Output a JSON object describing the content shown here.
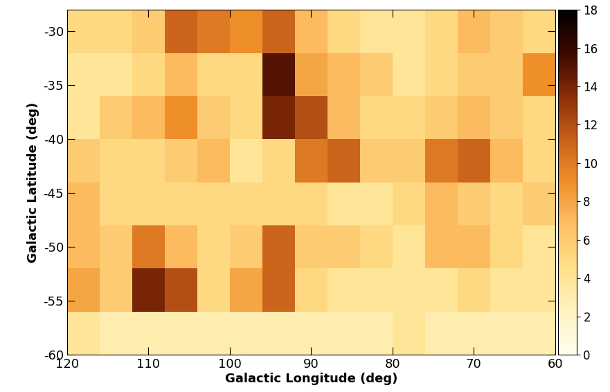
{
  "chart_data": {
    "type": "heatmap",
    "x_label": "Galactic Longitude (deg)",
    "y_label": "Galactic Latitude (deg)",
    "x_edges": [
      120,
      116,
      112,
      108,
      104,
      100,
      96,
      92,
      88,
      84,
      80,
      76,
      72,
      68,
      64,
      60
    ],
    "y_edges": [
      -60,
      -56,
      -52,
      -48,
      -44,
      -40,
      -36,
      -32,
      -28
    ],
    "cells": [
      [
        4,
        3,
        3,
        3,
        3,
        3,
        3,
        3,
        3,
        3,
        4,
        3,
        3,
        3,
        3
      ],
      [
        8,
        6,
        14,
        12,
        5,
        8,
        11,
        5,
        4,
        4,
        4,
        4,
        5,
        4,
        4
      ],
      [
        7,
        6,
        10,
        7,
        5,
        6,
        11,
        6,
        6,
        5,
        4,
        7,
        7,
        5,
        4
      ],
      [
        7,
        5,
        5,
        5,
        5,
        5,
        5,
        5,
        4,
        4,
        5,
        7,
        6,
        5,
        6
      ],
      [
        6,
        5,
        5,
        6,
        7,
        4,
        5,
        10,
        11,
        6,
        6,
        10,
        11,
        7,
        5
      ],
      [
        4,
        6,
        7,
        9,
        6,
        5,
        14,
        12,
        7,
        5,
        5,
        6,
        7,
        6,
        5
      ],
      [
        4,
        4,
        5,
        7,
        5,
        5,
        15,
        8,
        7,
        6,
        4,
        5,
        6,
        6,
        9
      ],
      [
        5,
        5,
        6,
        11,
        10,
        9,
        11,
        7,
        5,
        4,
        4,
        5,
        7,
        6,
        5
      ]
    ],
    "xlim": [
      120,
      60
    ],
    "ylim": [
      -60,
      -28
    ],
    "xticks": [
      120,
      110,
      100,
      90,
      80,
      70,
      60
    ],
    "yticks": [
      -60,
      -55,
      -50,
      -45,
      -40,
      -35,
      -30
    ],
    "colorbar_range": [
      0,
      18
    ],
    "colorbar_ticks": [
      0,
      2,
      4,
      6,
      8,
      10,
      12,
      14,
      16,
      18
    ]
  }
}
